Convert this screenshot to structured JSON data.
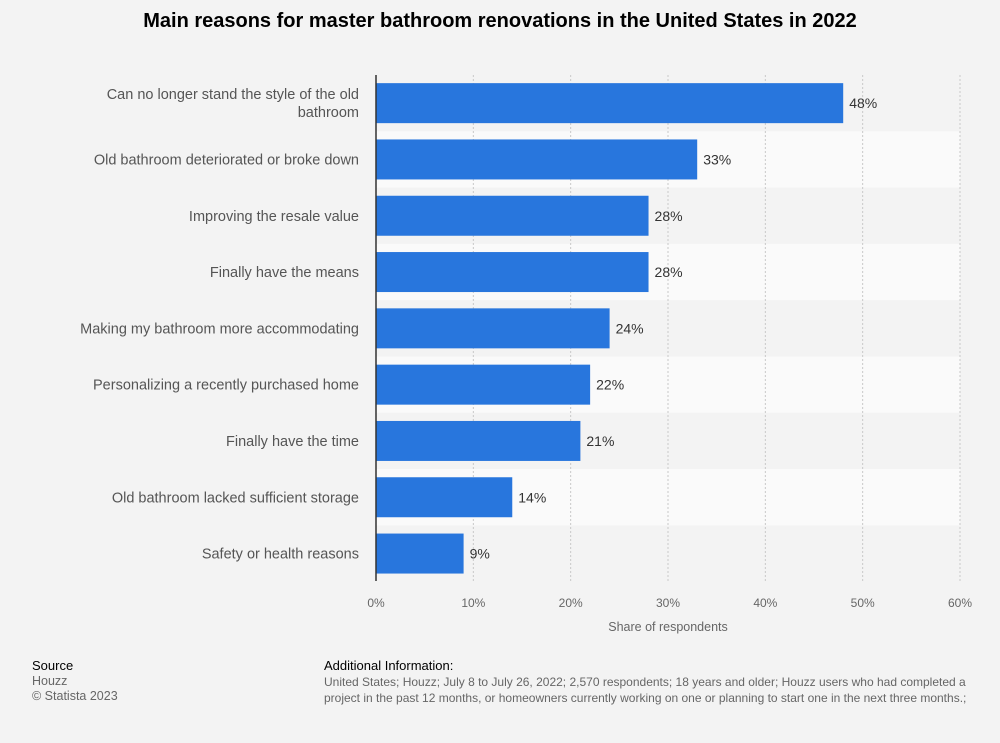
{
  "chart_data": {
    "type": "bar",
    "orientation": "horizontal",
    "title": "Main reasons for master bathroom renovations in the United States in 2022",
    "xlabel": "Share of respondents",
    "ylabel": "",
    "categories": [
      [
        "Can no longer stand the style of the old",
        "bathroom"
      ],
      [
        "Old bathroom deteriorated or broke down"
      ],
      [
        "Improving the resale value"
      ],
      [
        "Finally have the means"
      ],
      [
        "Making my bathroom more accommodating"
      ],
      [
        "Personalizing a recently purchased home"
      ],
      [
        "Finally have the time"
      ],
      [
        "Old bathroom lacked sufficient storage"
      ],
      [
        "Safety or health reasons"
      ]
    ],
    "values": [
      48,
      33,
      28,
      28,
      24,
      22,
      21,
      14,
      9
    ],
    "value_labels": [
      "48%",
      "33%",
      "28%",
      "28%",
      "24%",
      "22%",
      "21%",
      "14%",
      "9%"
    ],
    "xlim": [
      0,
      60
    ],
    "ticks": [
      0,
      10,
      20,
      30,
      40,
      50,
      60
    ],
    "tick_labels": [
      "0%",
      "10%",
      "20%",
      "30%",
      "40%",
      "50%",
      "60%"
    ],
    "grid": true,
    "bar_color": "#2876dd"
  },
  "footer": {
    "source_heading": "Source",
    "source_name": "Houzz",
    "copyright": "© Statista 2023",
    "info_heading": "Additional Information:",
    "info_line1": "United States; Houzz; July 8 to July 26, 2022; 2,570 respondents; 18 years and older; Houzz users who had completed a",
    "info_line2": "project in the past 12 months, or homeowners currently working on one or planning to start one in the next three months.;"
  }
}
